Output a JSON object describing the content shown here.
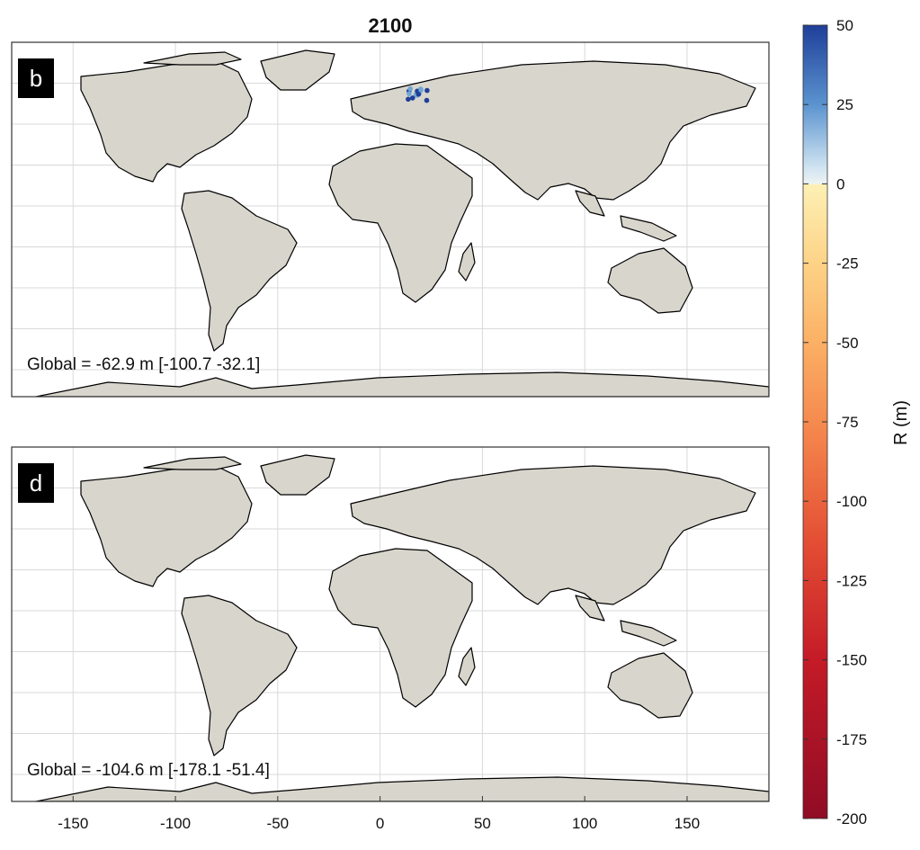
{
  "figure": {
    "title": "2100",
    "panels": [
      {
        "id": "b",
        "label": "b",
        "global_text": "Global = -62.9 m [-100.7 -32.1]"
      },
      {
        "id": "d",
        "label": "d",
        "global_text": "Global = -104.6 m [-178.1 -51.4]"
      }
    ],
    "x_axis": {
      "ticks": [
        "-150",
        "-100",
        "-50",
        "0",
        "50",
        "100",
        "150"
      ],
      "range": [
        -180,
        190
      ]
    },
    "colorbar": {
      "label": "R (m)",
      "ticks": [
        "50",
        "25",
        "0",
        "-25",
        "-50",
        "-75",
        "-100",
        "-125",
        "-150",
        "-175",
        "-200"
      ],
      "range": [
        -200,
        50
      ],
      "colors": {
        "positive_top": "#1f3f99",
        "positive_mid": "#6fa6d6",
        "zero": "#f3f1e8",
        "neg_light": "#fde49a",
        "neg_mid": "#f48a44",
        "neg_dark": "#9c0f26"
      }
    },
    "colors": {
      "land": "#d8d5cc",
      "coast": "#000000",
      "grid": "#d9d9d9",
      "axes_border": "#333333",
      "label_box": "#000000",
      "label_text": "#ffffff"
    }
  }
}
